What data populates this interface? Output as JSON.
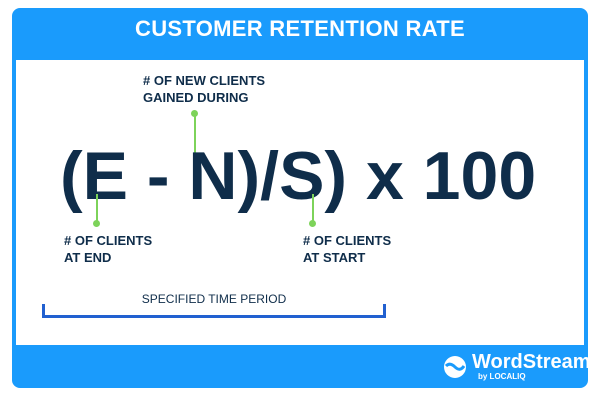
{
  "title": "CUSTOMER RETENTION RATE",
  "formula": "(E - N)/S) x 100",
  "labels": {
    "new_clients": [
      "# OF NEW CLIENTS",
      "GAINED DURING"
    ],
    "end_clients": [
      "# OF CLIENTS",
      "AT END"
    ],
    "start_clients": [
      "# OF CLIENTS",
      "AT START"
    ]
  },
  "period_label": "SPECIFIED TIME PERIOD",
  "brand": {
    "name": "WordStream",
    "sub": "by LOCALIQ",
    "icon": "wordstream-wave-icon"
  },
  "colors": {
    "blue": "#1a9bfc",
    "navy": "#0f2d4a",
    "green": "#7dd35a",
    "bracket": "#2160d0"
  }
}
